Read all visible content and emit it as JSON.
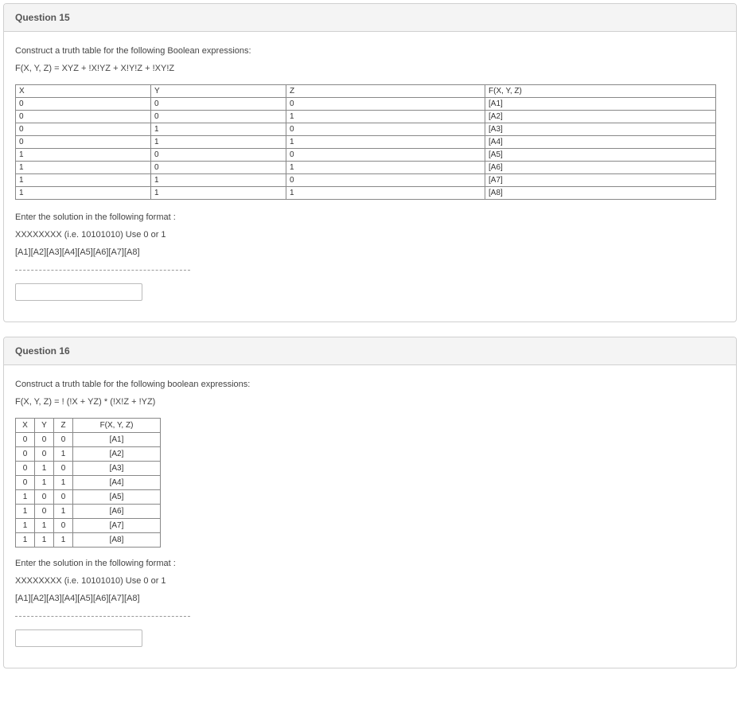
{
  "q15": {
    "title": "Question 15",
    "prompt": "Construct a truth table for the following Boolean expressions:",
    "expression": "F(X, Y, Z) = XYZ + !X!YZ + X!Y!Z + !XY!Z",
    "table": {
      "headers": {
        "x": "X",
        "y": "Y",
        "z": "Z",
        "f": "F(X, Y, Z)"
      },
      "rows": [
        {
          "x": "0",
          "y": "0",
          "z": "0",
          "f": "[A1]"
        },
        {
          "x": "0",
          "y": "0",
          "z": "1",
          "f": "[A2]"
        },
        {
          "x": "0",
          "y": "1",
          "z": "0",
          "f": "[A3]"
        },
        {
          "x": "0",
          "y": "1",
          "z": "1",
          "f": "[A4]"
        },
        {
          "x": "1",
          "y": "0",
          "z": "0",
          "f": "[A5]"
        },
        {
          "x": "1",
          "y": "0",
          "z": "1",
          "f": "[A6]"
        },
        {
          "x": "1",
          "y": "1",
          "z": "0",
          "f": "[A7]"
        },
        {
          "x": "1",
          "y": "1",
          "z": "1",
          "f": "[A8]"
        }
      ]
    },
    "format_lines": [
      "Enter the solution in the following format :",
      "XXXXXXXX (i.e. 10101010) Use 0 or 1",
      "[A1][A2][A3][A4][A5][A6][A7][A8]"
    ]
  },
  "q16": {
    "title": "Question 16",
    "prompt": "Construct a truth table for the following boolean expressions:",
    "expression": "F(X, Y, Z) = ! (!X + YZ) * (!X!Z + !YZ)",
    "table": {
      "headers": {
        "x": "X",
        "y": "Y",
        "z": "Z",
        "f": "F(X, Y, Z)"
      },
      "rows": [
        {
          "x": "0",
          "y": "0",
          "z": "0",
          "f": "[A1]"
        },
        {
          "x": "0",
          "y": "0",
          "z": "1",
          "f": "[A2]"
        },
        {
          "x": "0",
          "y": "1",
          "z": "0",
          "f": "[A3]"
        },
        {
          "x": "0",
          "y": "1",
          "z": "1",
          "f": "[A4]"
        },
        {
          "x": "1",
          "y": "0",
          "z": "0",
          "f": "[A5]"
        },
        {
          "x": "1",
          "y": "0",
          "z": "1",
          "f": "[A6]"
        },
        {
          "x": "1",
          "y": "1",
          "z": "0",
          "f": "[A7]"
        },
        {
          "x": "1",
          "y": "1",
          "z": "1",
          "f": "[A8]"
        }
      ]
    },
    "format_lines": [
      "Enter the solution in the following format :",
      "XXXXXXXX (i.e. 10101010) Use 0 or 1",
      "[A1][A2][A3][A4][A5][A6][A7][A8]"
    ]
  }
}
